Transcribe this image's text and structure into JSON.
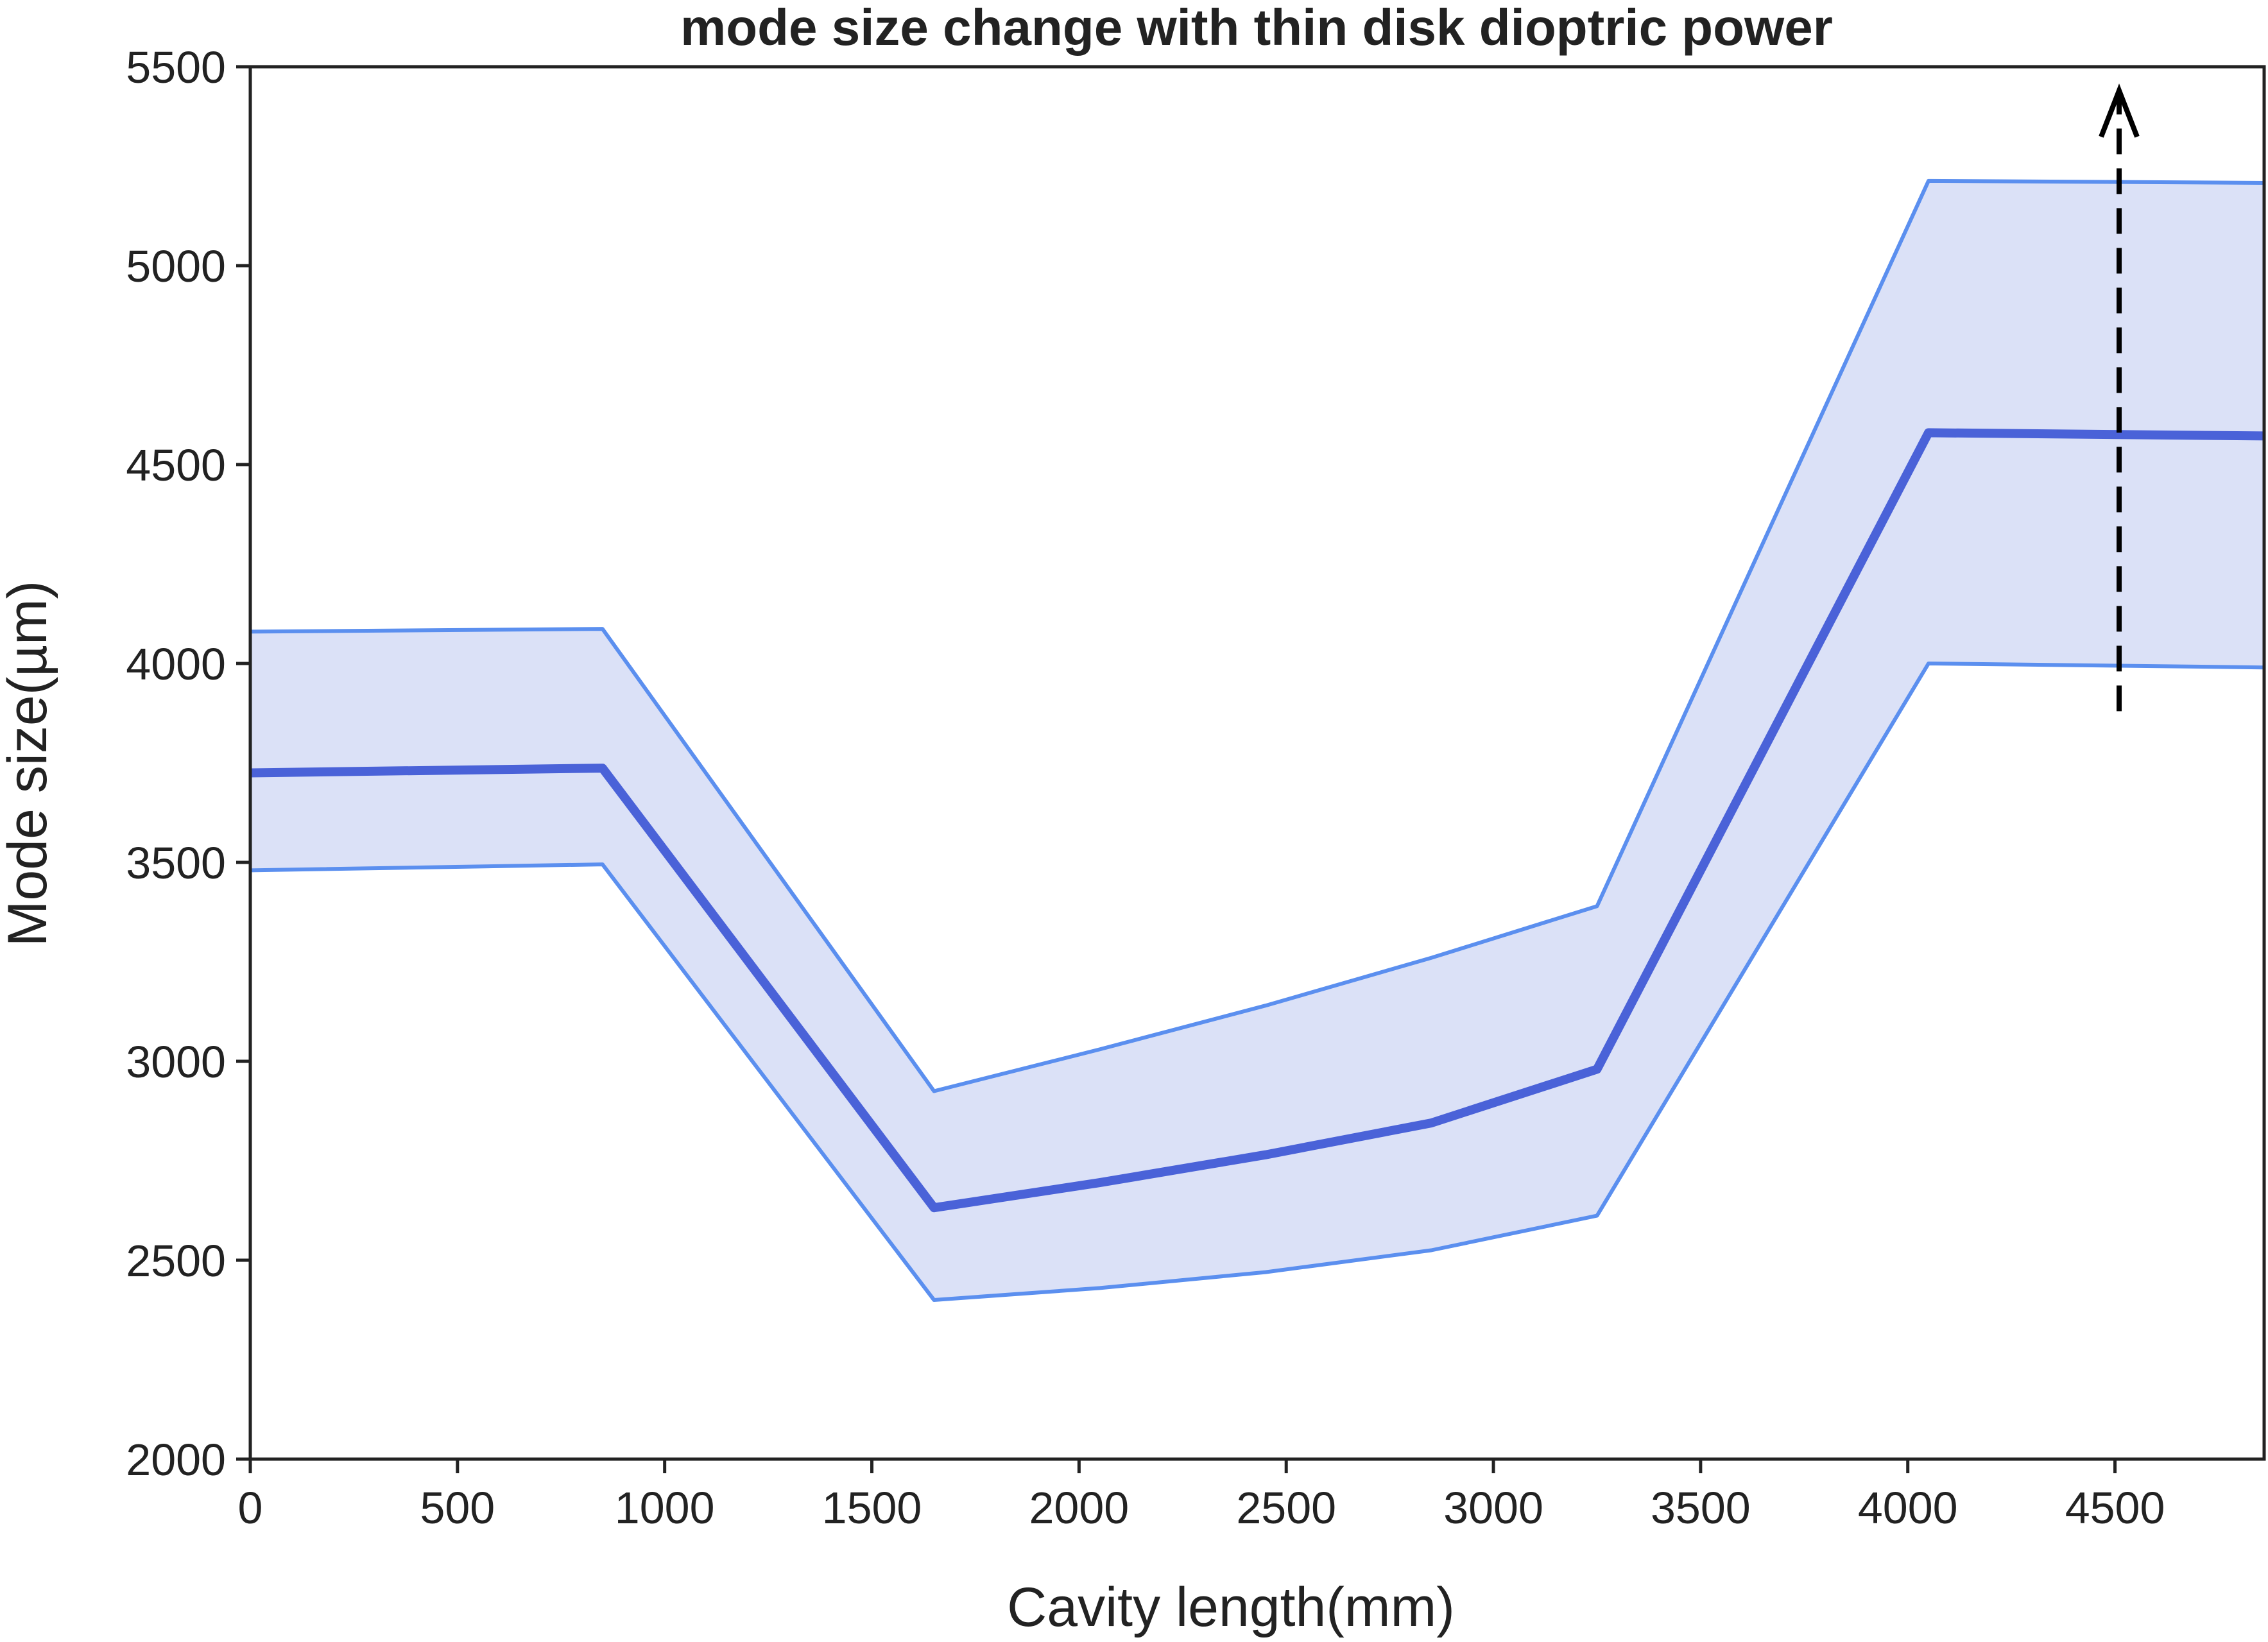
{
  "chart_data": {
    "type": "line",
    "title": "mode size change with thin disk dioptric power",
    "xlabel": "Cavity length(mm)",
    "ylabel": "Mode  size(µm)",
    "xlim": [
      0,
      4860
    ],
    "ylim": [
      2000,
      5500
    ],
    "xticks": [
      "0",
      "500",
      "1000",
      "1500",
      "2000",
      "2500",
      "3000",
      "3500",
      "4000",
      "4500"
    ],
    "yticks": [
      "2000",
      "2500",
      "3000",
      "3500",
      "4000",
      "4500",
      "5000",
      "5500"
    ],
    "grid": false,
    "legend": false,
    "colors": {
      "center_line": "#4a62d8",
      "bound_lines": "#5b8fef",
      "band_fill": "#dbe1f7",
      "arrow": "#000000"
    },
    "series": [
      {
        "role": "upper",
        "x": [
          0,
          850,
          1650,
          2050,
          2450,
          2850,
          3250,
          4050,
          4860
        ],
        "values": [
          4080,
          4087,
          2925,
          3030,
          3140,
          3260,
          3390,
          5213,
          5208
        ]
      },
      {
        "role": "center",
        "x": [
          0,
          850,
          1650,
          2050,
          2450,
          2850,
          3250,
          4050,
          4860
        ],
        "values": [
          3725,
          3737,
          2632,
          2695,
          2765,
          2845,
          2980,
          4580,
          4572
        ]
      },
      {
        "role": "lower",
        "x": [
          0,
          850,
          1650,
          2050,
          2450,
          2850,
          3250,
          4050,
          4860
        ],
        "values": [
          3480,
          3495,
          2400,
          2430,
          2470,
          2525,
          2612,
          4000,
          3990
        ]
      }
    ],
    "annotation": {
      "type": "dashed-arrow",
      "x": 4510,
      "y_from": 3880,
      "y_to": 5440
    }
  }
}
